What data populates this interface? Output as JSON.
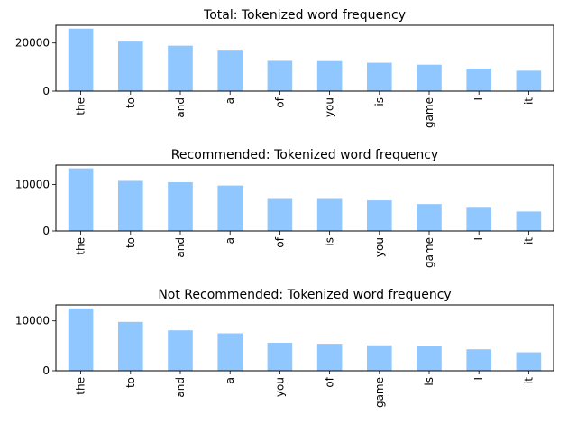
{
  "chart_data": [
    {
      "type": "bar",
      "title": "Total: Tokenized word frequency",
      "categories": [
        "the",
        "to",
        "and",
        "a",
        "of",
        "you",
        "is",
        "game",
        "I",
        "it"
      ],
      "values": [
        26000,
        20600,
        18900,
        17200,
        12600,
        12500,
        11800,
        11000,
        9400,
        8500
      ],
      "ylim": [
        0,
        27400
      ],
      "yticks": [
        0,
        20000
      ],
      "color": "#90c7ff"
    },
    {
      "type": "bar",
      "title": "Recommended: Tokenized word frequency",
      "categories": [
        "the",
        "to",
        "and",
        "a",
        "of",
        "is",
        "you",
        "game",
        "I",
        "it"
      ],
      "values": [
        13500,
        10800,
        10500,
        9800,
        6900,
        6900,
        6600,
        5800,
        5000,
        4200
      ],
      "ylim": [
        0,
        14200
      ],
      "yticks": [
        0,
        10000
      ],
      "color": "#90c7ff"
    },
    {
      "type": "bar",
      "title": "Not Recommended: Tokenized word frequency",
      "categories": [
        "the",
        "to",
        "and",
        "a",
        "you",
        "of",
        "game",
        "is",
        "I",
        "it"
      ],
      "values": [
        12500,
        9800,
        8100,
        7500,
        5600,
        5400,
        5100,
        4900,
        4300,
        3700
      ],
      "ylim": [
        0,
        13200
      ],
      "yticks": [
        0,
        10000
      ],
      "color": "#90c7ff"
    }
  ]
}
